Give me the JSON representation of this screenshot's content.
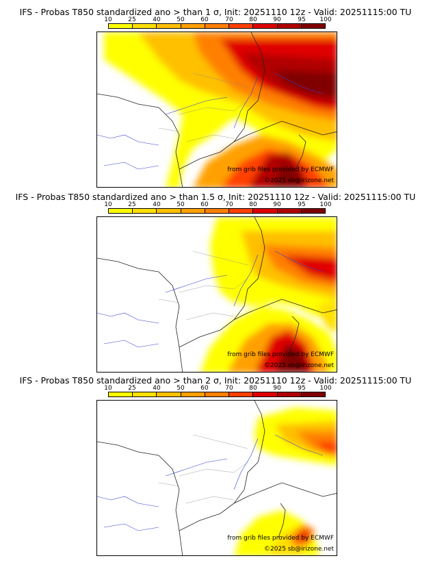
{
  "panels": [
    {
      "title": "IFS - Probas T850  standardized ano > than 1 σ, Init: 20251110 12z - Valid: 20251115:00 TU",
      "threshold_sigma": 1
    },
    {
      "title": "IFS - Probas T850  standardized ano > than 1.5 σ, Init: 20251110 12z - Valid: 20251115:00 TU",
      "threshold_sigma": 1.5
    },
    {
      "title": "IFS - Probas T850  standardized ano > than 2 σ, Init: 20251110 12z - Valid: 20251115:00 TU",
      "threshold_sigma": 2
    }
  ],
  "colorbar": {
    "ticks": [
      "10",
      "25",
      "40",
      "50",
      "60",
      "70",
      "80",
      "90",
      "95",
      "100"
    ],
    "colors": [
      "#ffff00",
      "#ffe000",
      "#ffc000",
      "#ffa000",
      "#ff7f00",
      "#ff4000",
      "#e00000",
      "#b00000",
      "#800000"
    ]
  },
  "credits": {
    "source": "from grib files provided by ECMWF",
    "site": "©2025 sb@irizone.net"
  }
}
